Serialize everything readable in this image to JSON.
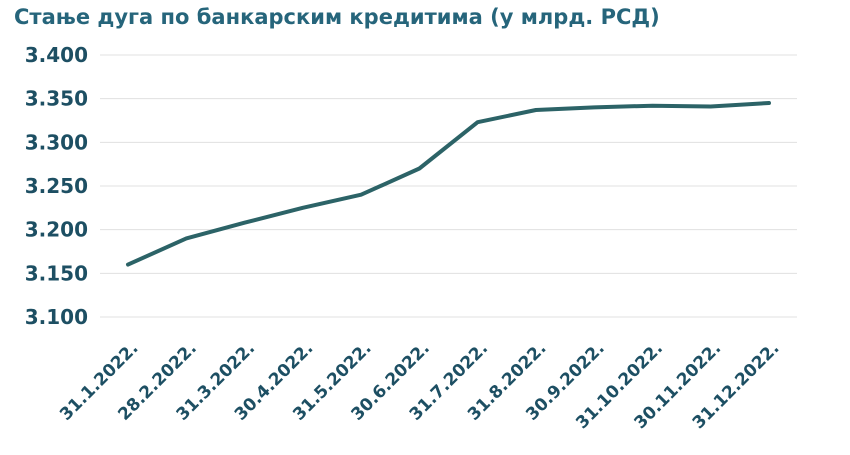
{
  "chart_data": {
    "type": "line",
    "title": "Стање дуга по банкарским кредитима (у млрд. РСД)",
    "categories": [
      "31.1.2022.",
      "28.2.2022.",
      "31.3.2022.",
      "30.4.2022.",
      "31.5.2022.",
      "30.6.2022.",
      "31.7.2022.",
      "31.8.2022.",
      "30.9.2022.",
      "31.10.2022.",
      "30.11.2022.",
      "31.12.2022."
    ],
    "series": [
      {
        "name": "Стање дуга по банкарским кредитима",
        "values": [
          3160,
          3190,
          3208,
          3225,
          3240,
          3270,
          3323,
          3337,
          3340,
          3342,
          3341,
          3345
        ]
      }
    ],
    "xlabel": "",
    "ylabel": "",
    "ylim": [
      3100,
      3400
    ],
    "yticks": [
      3400,
      3350,
      3300,
      3250,
      3200,
      3150,
      3100
    ],
    "ytick_labels": [
      "3.400",
      "3.350",
      "3.300",
      "3.250",
      "3.200",
      "3.150",
      "3.100"
    ],
    "grid": "horizontal-only",
    "legend": "none",
    "x_label_rotation_deg": 45,
    "colors": {
      "title": "#26657B",
      "axis_labels": "#1D4F63",
      "line": "#2C6367",
      "gridline": "#E0E0E0",
      "background": "#FFFFFF"
    }
  }
}
